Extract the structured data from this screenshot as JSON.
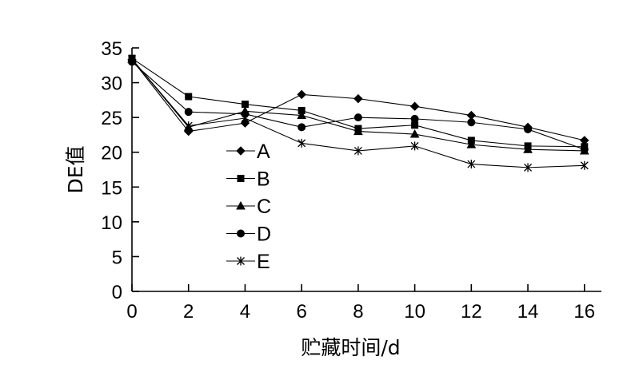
{
  "chart_data": {
    "type": "line",
    "title": "",
    "xlabel": "贮藏时间/d",
    "ylabel": "DE值",
    "xlim": [
      0,
      16.6
    ],
    "ylim": [
      0,
      35
    ],
    "xticks": [
      0,
      2,
      4,
      6,
      8,
      10,
      12,
      14,
      16
    ],
    "yticks": [
      0,
      5,
      10,
      15,
      20,
      25,
      30,
      35
    ],
    "x": [
      0,
      2,
      4,
      6,
      8,
      10,
      12,
      14,
      16
    ],
    "grid": false,
    "legend_position": "center-left",
    "series": [
      {
        "name": "A",
        "marker": "diamond",
        "values": [
          33.3,
          23.0,
          24.2,
          28.3,
          27.7,
          26.6,
          25.3,
          23.6,
          21.7
        ]
      },
      {
        "name": "B",
        "marker": "square",
        "values": [
          33.5,
          28.0,
          26.9,
          26.0,
          23.4,
          23.9,
          21.7,
          20.9,
          20.8
        ]
      },
      {
        "name": "C",
        "marker": "triangle",
        "values": [
          33.4,
          23.6,
          25.9,
          25.3,
          23.0,
          22.6,
          21.1,
          20.4,
          20.2
        ]
      },
      {
        "name": "D",
        "marker": "circle",
        "values": [
          33.0,
          25.8,
          25.5,
          23.6,
          25.0,
          24.8,
          24.3,
          23.3,
          20.4
        ]
      },
      {
        "name": "E",
        "marker": "star",
        "values": [
          33.4,
          23.8,
          24.9,
          21.3,
          20.2,
          20.9,
          18.3,
          17.8,
          18.1
        ]
      }
    ]
  }
}
